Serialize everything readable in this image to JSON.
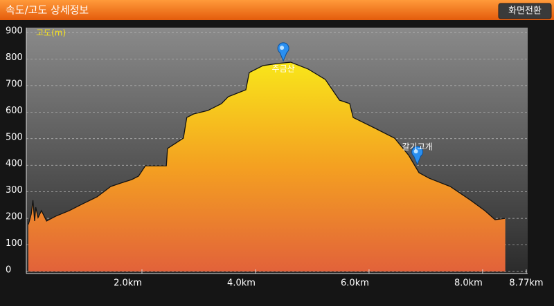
{
  "header": {
    "title": "속도/고도 상세정보",
    "button": "화면전환"
  },
  "chart_data": {
    "type": "area",
    "y_label": "고도(m)",
    "x": [
      0,
      0.05,
      0.08,
      0.11,
      0.13,
      0.17,
      0.23,
      0.32,
      0.48,
      0.72,
      0.96,
      1.21,
      1.45,
      1.63,
      1.82,
      1.94,
      2.06,
      2.43,
      2.45,
      2.73,
      2.79,
      2.91,
      3.16,
      3.4,
      3.52,
      3.83,
      3.89,
      4.13,
      4.38,
      4.62,
      4.93,
      5.23,
      5.48,
      5.66,
      5.72,
      6.09,
      6.45,
      6.7,
      6.88,
      7.06,
      7.43,
      7.79,
      8.04,
      8.22,
      8.4
    ],
    "values": [
      177,
      216,
      268,
      190,
      242,
      203,
      229,
      190,
      208,
      229,
      255,
      281,
      320,
      333,
      346,
      359,
      398,
      398,
      463,
      502,
      580,
      593,
      606,
      632,
      658,
      684,
      749,
      775,
      783,
      788,
      762,
      723,
      645,
      632,
      580,
      541,
      502,
      437,
      372,
      351,
      320,
      268,
      229,
      195,
      200
    ],
    "annotations": [
      {
        "label": "주금산",
        "x": 4.49,
        "y": 793
      },
      {
        "label": "갈기고개",
        "x": 6.85,
        "y": 403
      }
    ],
    "xlim": [
      0,
      8.77
    ],
    "xticks": [
      {
        "value": 2,
        "label": "2.0km"
      },
      {
        "value": 4,
        "label": "4.0km"
      },
      {
        "value": 6,
        "label": "6.0km"
      },
      {
        "value": 8,
        "label": "8.0km"
      },
      {
        "value": 8.77,
        "label": "8.77km"
      }
    ],
    "ylim": [
      0,
      900
    ],
    "yticks": [
      0,
      100,
      200,
      300,
      400,
      500,
      600,
      700,
      800,
      900
    ],
    "grid": true
  }
}
